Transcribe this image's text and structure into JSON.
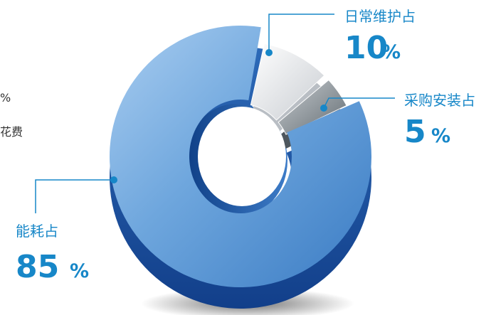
{
  "intro_fragments": [
    "%",
    "花费"
  ],
  "chart_data": {
    "type": "pie",
    "donut": true,
    "slices": [
      {
        "label": "日常维护占",
        "value": 10,
        "unit": "%",
        "color": "#e9ebee"
      },
      {
        "label": "采购安装占",
        "value": 5,
        "unit": "%",
        "color": "#8c969c"
      },
      {
        "label": "能耗占",
        "value": 85,
        "unit": "%",
        "color": "#5b94d0"
      }
    ],
    "accent_color": "#1787c8"
  }
}
